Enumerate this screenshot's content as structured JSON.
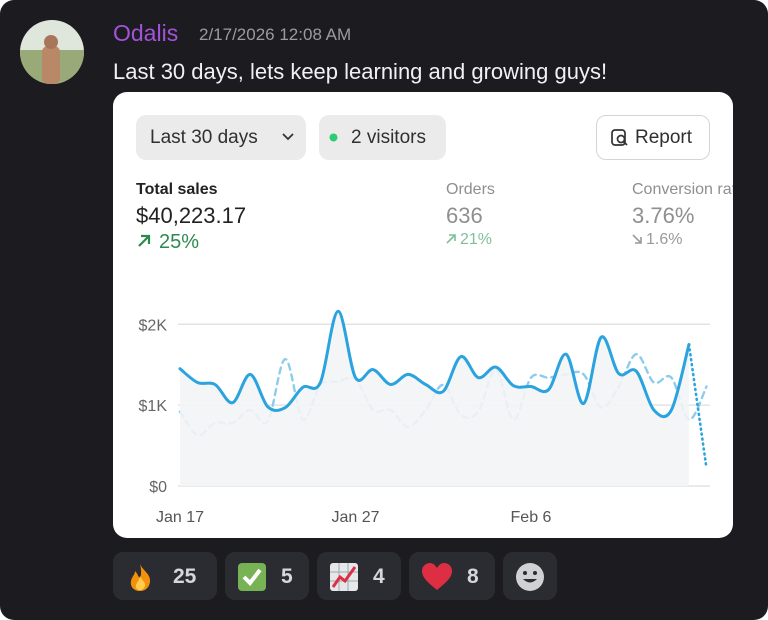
{
  "message": {
    "author": "Odalis",
    "timestamp": "2/17/2026 12:08 AM",
    "text": "Last 30 days, lets keep learning and growing guys!"
  },
  "embed": {
    "range_button": "Last 30 days",
    "visitors": "2 visitors",
    "report_button": "Report",
    "metrics": [
      {
        "label": "Total sales",
        "value": "$40,223.17",
        "change": "25%"
      },
      {
        "label": "Orders",
        "value": "636",
        "change": "21%"
      },
      {
        "label": "Conversion rate",
        "value": "3.76%",
        "change": "1.6%"
      }
    ],
    "chart": {
      "type": "line",
      "categories": [
        "Jan 17",
        null,
        null,
        null,
        null,
        null,
        null,
        null,
        null,
        null,
        "Jan 27",
        null,
        null,
        null,
        null,
        null,
        null,
        null,
        null,
        null,
        "Feb 6",
        null,
        null,
        null,
        null,
        null,
        null,
        null,
        null,
        null,
        null
      ],
      "series": [
        {
          "color": "#2ba3df",
          "projected_tail": true,
          "values": [
            1450,
            1280,
            1255,
            1030,
            1380,
            980,
            970,
            1220,
            1280,
            2160,
            1340,
            1440,
            1255,
            1380,
            1255,
            1170,
            1600,
            1340,
            1470,
            1240,
            1230,
            1190,
            1630,
            1020,
            1840,
            1390,
            1420,
            940,
            940,
            1750,
            220
          ]
        },
        {
          "color": "#8ccdec",
          "dashed": true,
          "values": [
            920,
            630,
            780,
            780,
            940,
            800,
            1570,
            820,
            1250,
            1290,
            1320,
            940,
            940,
            730,
            940,
            1250,
            880,
            920,
            1440,
            820,
            1340,
            1340,
            1380,
            1380,
            970,
            1230,
            1630,
            1280,
            1340,
            820,
            1230
          ]
        }
      ],
      "ylim": [
        0,
        2300
      ],
      "yticks": [
        {
          "value": 0,
          "label": "$0"
        },
        {
          "value": 1000,
          "label": "$1K"
        },
        {
          "value": 2000,
          "label": "$2K"
        }
      ],
      "grid": true
    }
  },
  "reactions": [
    {
      "count": 25
    },
    {
      "count": 5
    },
    {
      "count": 4
    },
    {
      "count": 8
    }
  ]
}
